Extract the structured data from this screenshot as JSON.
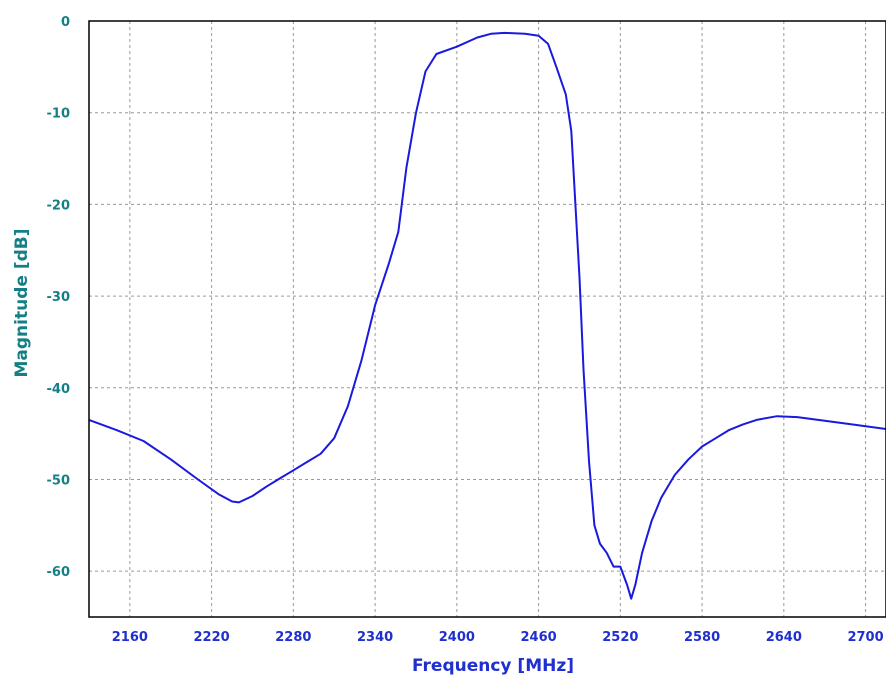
{
  "chart_data": {
    "type": "line",
    "title": "",
    "xlabel": "Frequency [MHz]",
    "ylabel": "Magnitude [dB]",
    "xlim": [
      2130,
      2715
    ],
    "ylim": [
      -65,
      0
    ],
    "xticks": [
      2160,
      2220,
      2280,
      2340,
      2400,
      2460,
      2520,
      2580,
      2640,
      2700
    ],
    "yticks": [
      0,
      -10,
      -20,
      -30,
      -40,
      -50,
      -60
    ],
    "grid": true,
    "legend": "none",
    "series": [
      {
        "color": "#1a1adf",
        "points": [
          [
            2130,
            -43.5
          ],
          [
            2150,
            -44.6
          ],
          [
            2170,
            -45.8
          ],
          [
            2190,
            -47.8
          ],
          [
            2210,
            -50.0
          ],
          [
            2225,
            -51.6
          ],
          [
            2235,
            -52.4
          ],
          [
            2240,
            -52.5
          ],
          [
            2250,
            -51.8
          ],
          [
            2260,
            -50.8
          ],
          [
            2270,
            -49.9
          ],
          [
            2280,
            -49.0
          ],
          [
            2290,
            -48.1
          ],
          [
            2300,
            -47.2
          ],
          [
            2310,
            -45.5
          ],
          [
            2320,
            -42.0
          ],
          [
            2330,
            -37.0
          ],
          [
            2340,
            -31.0
          ],
          [
            2350,
            -26.5
          ],
          [
            2357,
            -23.0
          ],
          [
            2363,
            -16.0
          ],
          [
            2370,
            -10.0
          ],
          [
            2377,
            -5.5
          ],
          [
            2385,
            -3.6
          ],
          [
            2400,
            -2.8
          ],
          [
            2415,
            -1.8
          ],
          [
            2425,
            -1.4
          ],
          [
            2435,
            -1.3
          ],
          [
            2450,
            -1.4
          ],
          [
            2460,
            -1.6
          ],
          [
            2467,
            -2.5
          ],
          [
            2473,
            -5.0
          ],
          [
            2480,
            -8.0
          ],
          [
            2484,
            -12.0
          ],
          [
            2487,
            -20.0
          ],
          [
            2490,
            -28.0
          ],
          [
            2493,
            -38.0
          ],
          [
            2497,
            -48.0
          ],
          [
            2501,
            -55.0
          ],
          [
            2505,
            -57.0
          ],
          [
            2510,
            -58.0
          ],
          [
            2515,
            -59.5
          ],
          [
            2520,
            -59.5
          ],
          [
            2525,
            -61.5
          ],
          [
            2528,
            -63.0
          ],
          [
            2531,
            -61.5
          ],
          [
            2536,
            -58.0
          ],
          [
            2543,
            -54.5
          ],
          [
            2550,
            -52.0
          ],
          [
            2560,
            -49.5
          ],
          [
            2570,
            -47.8
          ],
          [
            2580,
            -46.4
          ],
          [
            2590,
            -45.5
          ],
          [
            2600,
            -44.6
          ],
          [
            2610,
            -44.0
          ],
          [
            2620,
            -43.5
          ],
          [
            2635,
            -43.1
          ],
          [
            2650,
            -43.2
          ],
          [
            2670,
            -43.6
          ],
          [
            2690,
            -44.0
          ],
          [
            2715,
            -44.5
          ]
        ]
      }
    ]
  }
}
